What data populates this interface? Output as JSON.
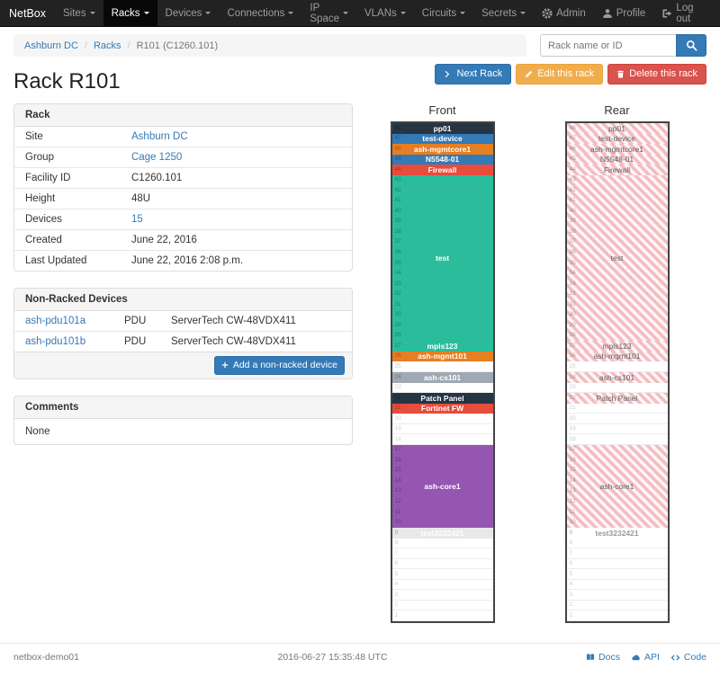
{
  "brand": "NetBox",
  "nav": {
    "items": [
      {
        "label": "Sites"
      },
      {
        "label": "Racks"
      },
      {
        "label": "Devices"
      },
      {
        "label": "Connections"
      },
      {
        "label": "IP Space"
      },
      {
        "label": "VLANs"
      },
      {
        "label": "Circuits"
      },
      {
        "label": "Secrets"
      }
    ],
    "admin": "Admin",
    "profile": "Profile",
    "logout": "Log out"
  },
  "breadcrumb": {
    "site": "Ashburn DC",
    "section": "Racks",
    "current": "R101 (C1260.101)"
  },
  "search": {
    "placeholder": "Rack name or ID"
  },
  "actions": {
    "next": "Next Rack",
    "edit": "Edit this rack",
    "delete": "Delete this rack"
  },
  "title": "Rack R101",
  "rack_info": {
    "title": "Rack",
    "rows": [
      {
        "label": "Site",
        "value": "Ashburn DC",
        "link": true
      },
      {
        "label": "Group",
        "value": "Cage 1250",
        "link": true
      },
      {
        "label": "Facility ID",
        "value": "C1260.101",
        "link": false
      },
      {
        "label": "Height",
        "value": "48U",
        "link": false
      },
      {
        "label": "Devices",
        "value": "15",
        "link": true
      },
      {
        "label": "Created",
        "value": "June 22, 2016",
        "link": false
      },
      {
        "label": "Last Updated",
        "value": "June 22, 2016 2:08 p.m.",
        "link": false
      }
    ]
  },
  "nonracked": {
    "title": "Non-Racked Devices",
    "rows": [
      {
        "name": "ash-pdu101a",
        "type": "PDU",
        "model": "ServerTech CW-48VDX411"
      },
      {
        "name": "ash-pdu101b",
        "type": "PDU",
        "model": "ServerTech CW-48VDX411"
      }
    ],
    "add_label": "Add a non-racked device"
  },
  "comments": {
    "title": "Comments",
    "body": "None"
  },
  "elevations": {
    "total_u": 48,
    "front": {
      "title": "Front",
      "units": [
        {
          "u": 48,
          "h": 1,
          "label": "pp01",
          "bg": "#253544",
          "fg": "#ffffff"
        },
        {
          "u": 47,
          "h": 1,
          "label": "test-device",
          "bg": "#337ab7",
          "fg": "#ffffff"
        },
        {
          "u": 46,
          "h": 1,
          "label": "ash-mgmtcore1",
          "bg": "#e67e22",
          "fg": "#ffffff"
        },
        {
          "u": 45,
          "h": 1,
          "label": "N5548-01",
          "bg": "#337ab7",
          "fg": "#ffffff"
        },
        {
          "u": 44,
          "h": 1,
          "label": "Firewall",
          "bg": "#e74c3c",
          "fg": "#ffffff"
        },
        {
          "u": 43,
          "h": 16,
          "label": "test",
          "bg": "#2bbd9b",
          "fg": "#ffffff"
        },
        {
          "u": 27,
          "h": 1,
          "label": "mpls123",
          "bg": "#2bbd9b",
          "fg": "#ffffff"
        },
        {
          "u": 26,
          "h": 1,
          "label": "ash-mgmt101",
          "bg": "#e67e22",
          "fg": "#ffffff"
        },
        {
          "u": 24,
          "h": 1,
          "label": "ash-cs101",
          "bg": "#9fa9b3",
          "fg": "#ffffff"
        },
        {
          "u": 22,
          "h": 1,
          "label": "Patch Panel",
          "bg": "#253544",
          "fg": "#ffffff"
        },
        {
          "u": 21,
          "h": 1,
          "label": "Fortinet FW",
          "bg": "#e74c3c",
          "fg": "#ffffff"
        },
        {
          "u": 17,
          "h": 8,
          "label": "ash-core1",
          "bg": "#9456b0",
          "fg": "#ffffff"
        },
        {
          "u": 9,
          "h": 1,
          "label": "test3232421",
          "bg": "#e8e8e8",
          "fg": "#ffffff"
        }
      ]
    },
    "rear": {
      "title": "Rear",
      "units": [
        {
          "u": 48,
          "h": 1,
          "label": "pp01",
          "striped": true
        },
        {
          "u": 47,
          "h": 1,
          "label": "test-device",
          "striped": true
        },
        {
          "u": 46,
          "h": 1,
          "label": "ash-mgmtcore1",
          "striped": true
        },
        {
          "u": 45,
          "h": 1,
          "label": "N5548-01",
          "striped": true
        },
        {
          "u": 44,
          "h": 1,
          "label": "Firewall",
          "striped": true
        },
        {
          "u": 43,
          "h": 16,
          "label": "test",
          "striped": true
        },
        {
          "u": 27,
          "h": 1,
          "label": "mpls123",
          "striped": true
        },
        {
          "u": 26,
          "h": 1,
          "label": "ash-mgmt101",
          "striped": true
        },
        {
          "u": 24,
          "h": 1,
          "label": "ash-cs101",
          "striped": true
        },
        {
          "u": 22,
          "h": 1,
          "label": "Patch Panel",
          "striped": true
        },
        {
          "u": 17,
          "h": 8,
          "label": "ash-core1",
          "striped": true
        },
        {
          "u": 9,
          "h": 1,
          "label": "test3232421",
          "striped": false,
          "bg": "#ffffff",
          "fg": "#999999"
        }
      ]
    }
  },
  "footer": {
    "hostname": "netbox-demo01",
    "timestamp": "2016-06-27 15:35:48 UTC",
    "docs": "Docs",
    "api": "API",
    "code": "Code"
  }
}
